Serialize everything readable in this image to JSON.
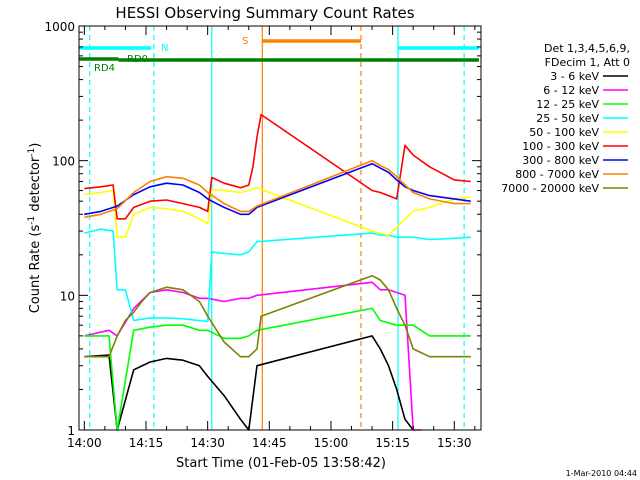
{
  "chart_data": {
    "type": "line",
    "title": "HESSI Observing Summary Count Rates",
    "xlabel": "Start Time (01-Feb-05 13:58:42)",
    "ylabel_main": "Count Rate (s",
    "ylabel_sup1": "-1",
    "ylabel_mid": " detector",
    "ylabel_sup2": "-1",
    "ylabel_end": ")",
    "x_unit": "minutes after 14:00",
    "xlim": [
      -1.3,
      96.5
    ],
    "ylim": [
      1,
      1000
    ],
    "yscale": "log",
    "x_ticks": [
      {
        "value": 0,
        "label": "14:00"
      },
      {
        "value": 15,
        "label": "14:15"
      },
      {
        "value": 30,
        "label": "14:30"
      },
      {
        "value": 45,
        "label": "14:45"
      },
      {
        "value": 60,
        "label": "15:00"
      },
      {
        "value": 75,
        "label": "15:15"
      },
      {
        "value": 90,
        "label": "15:30"
      }
    ],
    "y_ticks": [
      {
        "value": 1,
        "label": "1"
      },
      {
        "value": 10,
        "label": "10"
      },
      {
        "value": 100,
        "label": "100"
      },
      {
        "value": 1000,
        "label": "1000"
      }
    ],
    "legend_header": [
      "Det 1,3,4,5,6,9,",
      "FDecim 1, Att 0"
    ],
    "legend_position": "right",
    "series": [
      {
        "name": "3 - 6 keV",
        "color": "#000000",
        "x": [
          0,
          6,
          8,
          12,
          16,
          20,
          24,
          28,
          30,
          34,
          38,
          40,
          42,
          70,
          72,
          74,
          76,
          78,
          80
        ],
        "y": [
          3.5,
          3.6,
          1.0,
          2.8,
          3.2,
          3.4,
          3.3,
          3.0,
          2.5,
          1.8,
          1.2,
          1.0,
          3.0,
          5.0,
          4.0,
          3.0,
          2.0,
          1.2,
          1.0
        ]
      },
      {
        "name": "6 - 12 keV",
        "color": "#ff00ff",
        "x": [
          0,
          6,
          8,
          12,
          16,
          20,
          24,
          28,
          30,
          34,
          38,
          40,
          42,
          70,
          72,
          74,
          76,
          78,
          80,
          82
        ],
        "y": [
          5.0,
          5.5,
          5.0,
          8.0,
          10.5,
          11.0,
          10.5,
          9.5,
          9.5,
          9.0,
          9.5,
          9.5,
          10.0,
          12.5,
          11.0,
          11.0,
          10.5,
          10.0,
          1.0,
          1.0
        ]
      },
      {
        "name": "12 - 25 keV",
        "color": "#00ff00",
        "x": [
          0,
          6,
          8,
          12,
          16,
          20,
          24,
          28,
          30,
          34,
          38,
          40,
          42,
          70,
          72,
          76,
          80,
          84,
          90,
          94
        ],
        "y": [
          5.0,
          5.0,
          1.0,
          5.5,
          5.8,
          6.0,
          6.0,
          5.5,
          5.5,
          4.8,
          4.8,
          5.0,
          5.5,
          8.0,
          6.5,
          6.0,
          6.0,
          5.0,
          5.0,
          5.0
        ]
      },
      {
        "name": "25 - 50 keV",
        "color": "#00ffff",
        "x": [
          0,
          4,
          7,
          8,
          10,
          12,
          16,
          20,
          24,
          28,
          30,
          31,
          34,
          38,
          40,
          41,
          42,
          70,
          72,
          74,
          76,
          80,
          84,
          90,
          94
        ],
        "y": [
          29,
          31,
          30,
          11,
          11,
          6.5,
          6.8,
          6.8,
          6.7,
          6.5,
          6.4,
          21,
          20.5,
          20,
          21,
          23,
          25,
          29,
          28,
          28,
          27,
          27,
          26,
          26.5,
          27
        ]
      },
      {
        "name": "50 - 100 keV",
        "color": "#ffff00",
        "x": [
          0,
          4,
          7,
          8,
          10,
          12,
          16,
          20,
          24,
          28,
          30,
          31,
          34,
          38,
          40,
          42,
          70,
          72,
          74,
          76,
          80,
          84,
          90,
          94
        ],
        "y": [
          56,
          58,
          60,
          27,
          27,
          40,
          45,
          44,
          42,
          37,
          34,
          61,
          60,
          58,
          60,
          63,
          30,
          29,
          28,
          32,
          42,
          45,
          52,
          54
        ]
      },
      {
        "name": "100 - 300 keV",
        "color": "#ff0000",
        "x": [
          0,
          4,
          7,
          8,
          10,
          12,
          16,
          20,
          24,
          28,
          30,
          31,
          34,
          38,
          40,
          41,
          42,
          43,
          70,
          72,
          74,
          76,
          78,
          80,
          84,
          90,
          94
        ],
        "y": [
          62,
          64,
          66,
          37,
          37,
          45,
          50,
          51,
          48,
          45,
          42,
          75,
          68,
          63,
          66,
          90,
          150,
          220,
          60,
          58,
          55,
          52,
          130,
          110,
          90,
          72,
          70
        ]
      },
      {
        "name": "300 - 800 keV",
        "color": "#0000ff",
        "x": [
          0,
          4,
          8,
          12,
          16,
          20,
          24,
          28,
          30,
          34,
          38,
          40,
          42,
          70,
          72,
          74,
          76,
          78,
          80,
          84,
          90,
          94
        ],
        "y": [
          40,
          42,
          46,
          56,
          64,
          68,
          66,
          58,
          52,
          45,
          40,
          40,
          45,
          95,
          88,
          82,
          72,
          64,
          60,
          55,
          52,
          50
        ]
      },
      {
        "name": "800 - 7000 keV",
        "color": "#ff8000",
        "x": [
          0,
          4,
          8,
          12,
          16,
          20,
          24,
          28,
          30,
          34,
          38,
          40,
          42,
          70,
          72,
          74,
          76,
          78,
          80,
          84,
          90,
          94
        ],
        "y": [
          38,
          40,
          44,
          58,
          70,
          76,
          74,
          66,
          58,
          48,
          42,
          42,
          46,
          100,
          92,
          86,
          76,
          66,
          58,
          52,
          48,
          48
        ]
      },
      {
        "name": "7000 - 20000 keV",
        "color": "#808000",
        "x": [
          0,
          4,
          6,
          8,
          10,
          12,
          14,
          16,
          20,
          24,
          28,
          30,
          34,
          38,
          40,
          42,
          43,
          70,
          72,
          74,
          76,
          78,
          80,
          84,
          90,
          94
        ],
        "y": [
          3.5,
          3.5,
          3.5,
          5.0,
          6.5,
          7.5,
          9.0,
          10.5,
          11.5,
          11.0,
          9.0,
          7.0,
          4.5,
          3.5,
          3.5,
          4.0,
          7.0,
          14.0,
          13.0,
          11.0,
          8.0,
          6.0,
          4.0,
          3.5,
          3.5,
          3.5
        ]
      }
    ],
    "vertical_markers": [
      {
        "x": 1.3,
        "color": "#00ffff",
        "style": "dashed"
      },
      {
        "x": 16.9,
        "color": "#00ffff",
        "style": "dashed"
      },
      {
        "x": 31.0,
        "color": "#00ffff",
        "style": "solid"
      },
      {
        "x": 43.3,
        "color": "#ff8000",
        "style": "solid"
      },
      {
        "x": 67.3,
        "color": "#ff8000",
        "style": "dashed"
      },
      {
        "x": 76.3,
        "color": "#00ffff",
        "style": "solid"
      },
      {
        "x": 92.4,
        "color": "#00ffff",
        "style": "dashed"
      }
    ],
    "bars": [
      {
        "name": "N",
        "color": "#00ffff",
        "segments": [
          [
            -1.3,
            16.3
          ],
          [
            76.3,
            96.0
          ]
        ]
      },
      {
        "name": "S",
        "color": "#ff8000",
        "segments": [
          [
            43.3,
            67.3
          ]
        ]
      },
      {
        "name": "RD0",
        "color": "#008000",
        "segments": [
          [
            -1.3,
            8.3
          ]
        ]
      },
      {
        "name": "RD4",
        "color": "#008000",
        "segments": [
          [
            8.3,
            31.0
          ],
          [
            31.0,
            67.3
          ],
          [
            67.3,
            76.3
          ],
          [
            76.3,
            96.0
          ]
        ]
      }
    ],
    "timestamp": "1-Mar-2010 04:44"
  }
}
